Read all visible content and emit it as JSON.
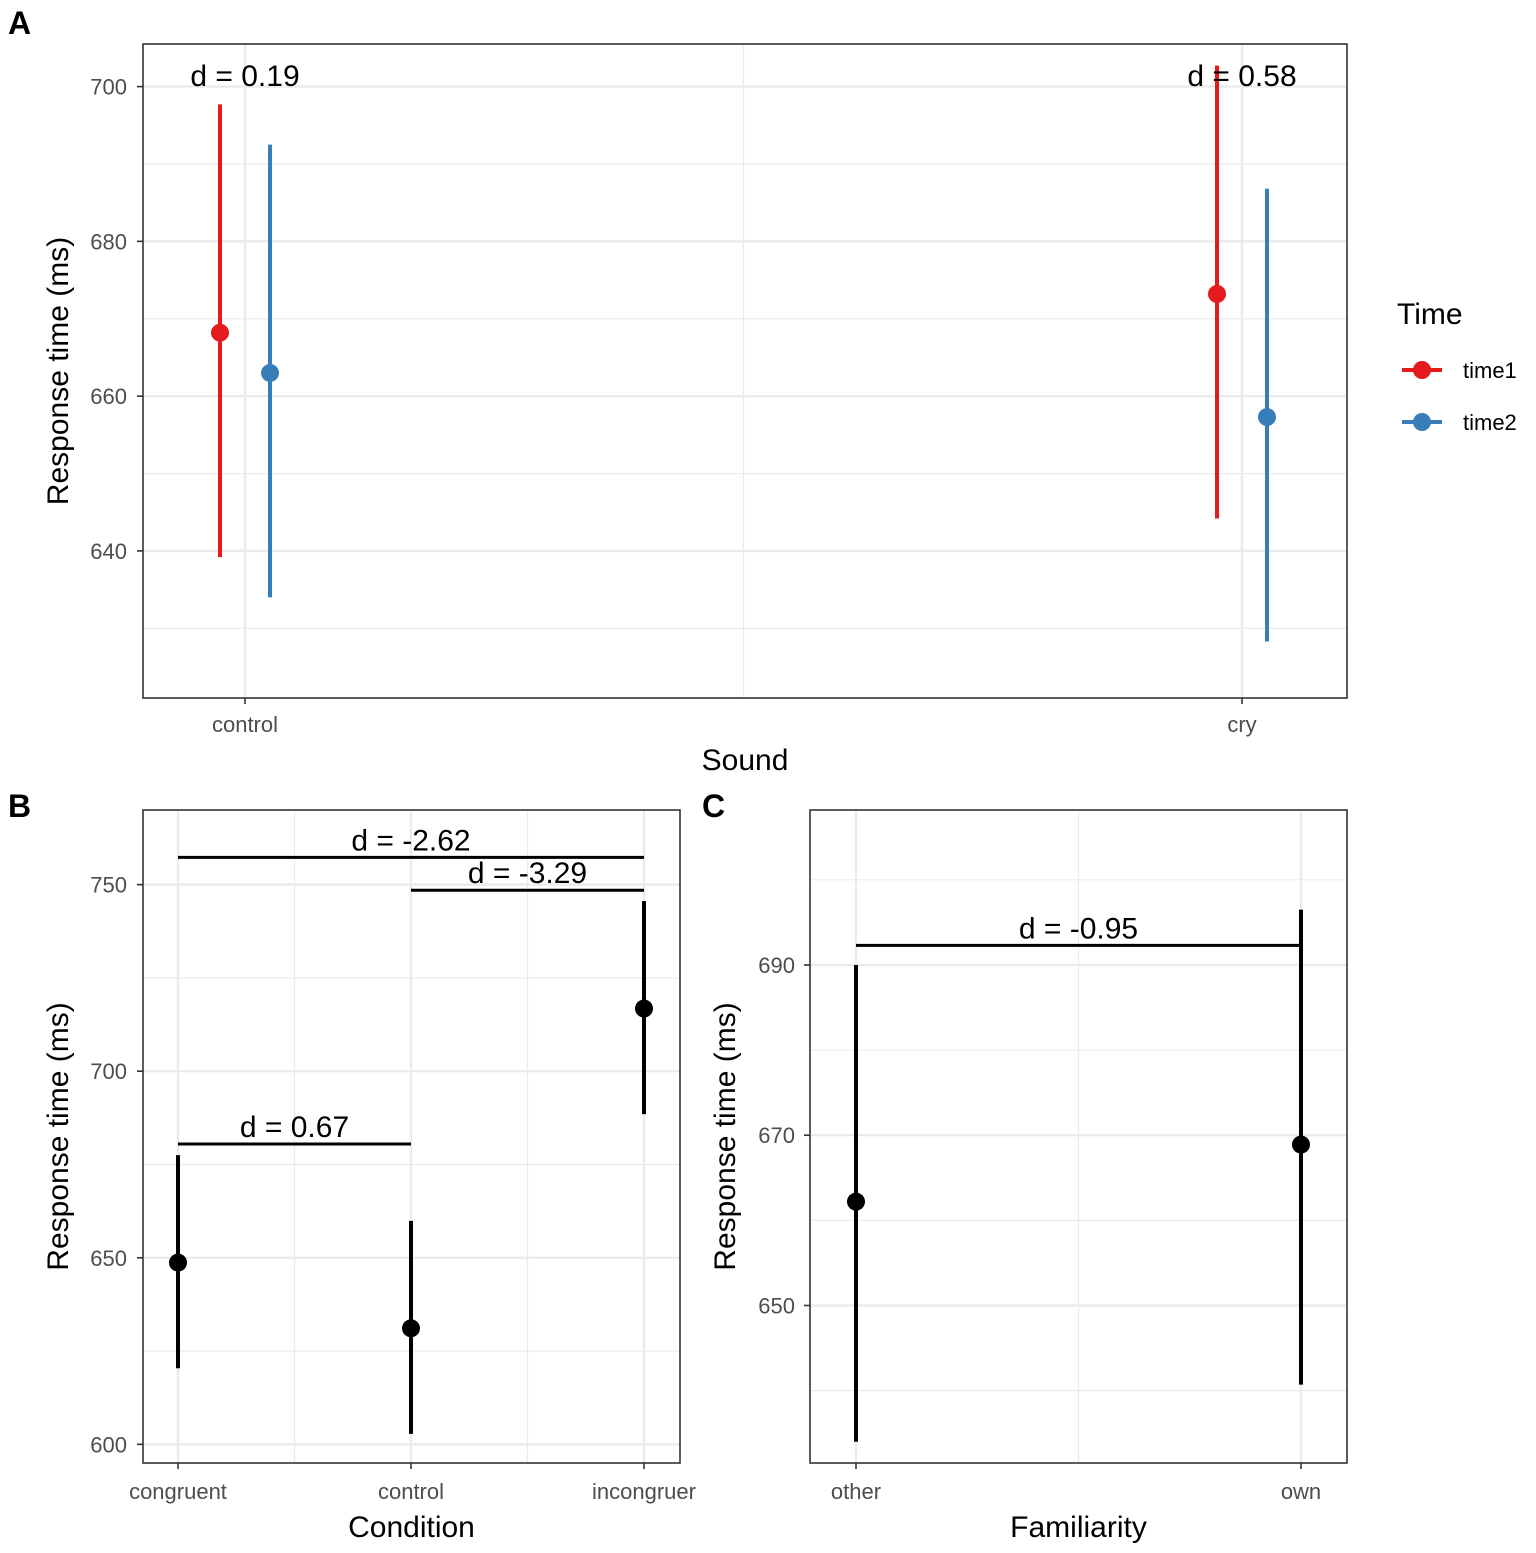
{
  "chart_data": [
    {
      "panel": "A",
      "type": "pointrange",
      "xlabel": "Sound",
      "ylabel": "Response time (ms)",
      "categories": [
        "control",
        "cry"
      ],
      "yticks": [
        "640",
        "660",
        "680",
        "700"
      ],
      "ylim": [
        621,
        705.5
      ],
      "legend": {
        "title": "Time",
        "position": "right"
      },
      "series": [
        {
          "name": "time1",
          "color": "#e41a1c",
          "values": [
            668.2,
            673.2
          ],
          "lower": [
            639.2,
            644.2
          ],
          "upper": [
            697.7,
            702.7
          ]
        },
        {
          "name": "time2",
          "color": "#377eb8",
          "values": [
            663.0,
            657.3
          ],
          "lower": [
            634.0,
            628.3
          ],
          "upper": [
            692.5,
            686.8
          ]
        }
      ],
      "annotations": [
        {
          "text": "d = 0.19",
          "category": "control"
        },
        {
          "text": "d = 0.58",
          "category": "cry"
        }
      ]
    },
    {
      "panel": "B",
      "type": "pointrange",
      "xlabel": "Condition",
      "ylabel": "Response time (ms)",
      "categories": [
        "congruent",
        "control",
        "incongruer"
      ],
      "yticks": [
        "600",
        "650",
        "700",
        "750"
      ],
      "ylim": [
        595,
        770
      ],
      "color": "#000000",
      "values": [
        648.7,
        631.1,
        716.8
      ],
      "lower": [
        620.4,
        602.8,
        688.5
      ],
      "upper": [
        677.5,
        659.9,
        745.6
      ],
      "brackets": [
        {
          "text": "d = -2.62",
          "from": "congruent",
          "to": "incongruer",
          "y": 757.3
        },
        {
          "text": "d = -3.29",
          "from": "control",
          "to": "incongruer",
          "y": 748.5
        },
        {
          "text": "d = 0.67",
          "from": "congruent",
          "to": "control",
          "y": 680.5
        }
      ]
    },
    {
      "panel": "C",
      "type": "pointrange",
      "xlabel": "Familiarity",
      "ylabel": "Response time (ms)",
      "categories": [
        "other",
        "own"
      ],
      "yticks": [
        "650",
        "670",
        "690"
      ],
      "ylim": [
        631.5,
        708.2
      ],
      "color": "#000000",
      "values": [
        662.2,
        668.9
      ],
      "lower": [
        634.0,
        640.7
      ],
      "upper": [
        690.0,
        696.5
      ],
      "brackets": [
        {
          "text": "d = -0.95",
          "from": "other",
          "to": "own",
          "y": 692.3
        }
      ]
    }
  ]
}
